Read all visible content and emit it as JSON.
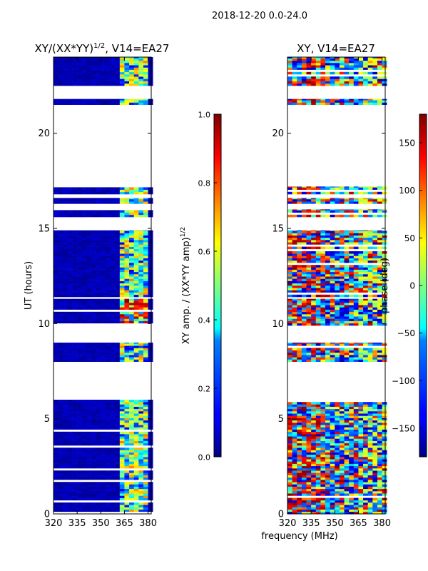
{
  "figure": {
    "title": "2018-12-20 0.0-24.0"
  },
  "chart_data": [
    {
      "type": "heatmap",
      "title_base": "XY/(XX*YY)",
      "title_sup": "1/2",
      "title_tail": ", V14=EA27",
      "xlabel": "",
      "ylabel": "UT (hours)",
      "xlim": [
        320,
        382
      ],
      "ylim": [
        0,
        24
      ],
      "xticks": [
        320,
        335,
        350,
        365,
        380
      ],
      "yticks": [
        0,
        5,
        10,
        15,
        20
      ],
      "colorbar": {
        "label_base": "XY amp. / (XX*YY amp)",
        "label_sup": "1/2",
        "range": [
          0.0,
          1.0
        ],
        "ticks": [
          "0.0",
          "0.2",
          "0.4",
          "0.6",
          "0.8",
          "1.0"
        ],
        "tick_values": [
          0.0,
          0.2,
          0.4,
          0.6,
          0.8,
          1.0
        ]
      },
      "data_bands_hours": [
        [
          0.0,
          6.0
        ],
        [
          8.0,
          9.0
        ],
        [
          9.9,
          11.3
        ],
        [
          11.4,
          14.9
        ],
        [
          15.6,
          16.0
        ],
        [
          16.3,
          16.6
        ],
        [
          16.8,
          17.2
        ],
        [
          21.5,
          21.8
        ],
        [
          22.5,
          24.0
        ]
      ],
      "high_values_range_mhz": [
        362,
        378
      ]
    },
    {
      "type": "heatmap",
      "title": "XY, V14=EA27",
      "xlabel": "frequency (MHz)",
      "xlim": [
        320,
        382
      ],
      "ylim": [
        0,
        24
      ],
      "xticks": [
        320,
        335,
        350,
        365,
        380
      ],
      "yticks": [
        0,
        5,
        10,
        15,
        20
      ],
      "colorbar": {
        "label": "phase (deg)",
        "range": [
          -180,
          180
        ],
        "ticks": [
          "−150",
          "−100",
          "−50",
          "0",
          "50",
          "100",
          "150"
        ],
        "tick_values": [
          -150,
          -100,
          -50,
          0,
          50,
          100,
          150
        ]
      },
      "data_bands_hours": [
        [
          0.0,
          6.0
        ],
        [
          8.0,
          9.0
        ],
        [
          9.9,
          11.3
        ],
        [
          11.4,
          14.9
        ],
        [
          15.6,
          16.0
        ],
        [
          16.3,
          16.6
        ],
        [
          16.8,
          17.2
        ],
        [
          21.5,
          21.8
        ],
        [
          22.5,
          24.0
        ]
      ]
    }
  ]
}
